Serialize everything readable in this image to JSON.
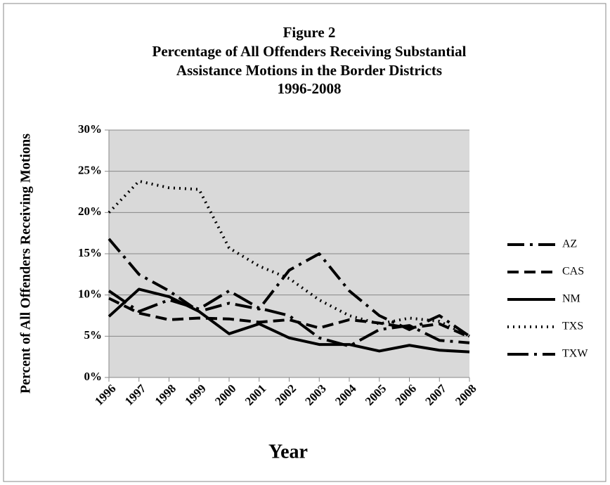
{
  "chart_data": {
    "type": "line",
    "title": [
      "Figure 2",
      "Percentage of All Offenders Receiving Substantial",
      "Assistance Motions in the Border Districts",
      "1996-2008"
    ],
    "x_label": "Year",
    "y_label": "Percent of All Offenders Receiving Motions",
    "categories": [
      "1996",
      "1997",
      "1998",
      "1999",
      "2000",
      "2001",
      "2002",
      "2003",
      "2004",
      "2005",
      "2006",
      "2007",
      "2008"
    ],
    "ylim": [
      0,
      30
    ],
    "yticks": [
      {
        "value": 0,
        "label": "0%"
      },
      {
        "value": 5,
        "label": "5%"
      },
      {
        "value": 10,
        "label": "10%"
      },
      {
        "value": 15,
        "label": "15%"
      },
      {
        "value": 20,
        "label": "20%"
      },
      {
        "value": 25,
        "label": "25%"
      },
      {
        "value": 30,
        "label": "30%"
      }
    ],
    "grid": true,
    "legend": "right",
    "plot_background": "#d9d9d9",
    "series": [
      {
        "name": "AZ",
        "color": "#000000",
        "dash": "24,8,4,8",
        "values": [
          16.8,
          12.5,
          10.5,
          8.0,
          9.0,
          8.3,
          13.0,
          15.0,
          10.5,
          7.5,
          5.8,
          7.5,
          5.0
        ]
      },
      {
        "name": "CAS",
        "color": "#000000",
        "dash": "16,8",
        "values": [
          9.6,
          7.8,
          7.0,
          7.2,
          7.1,
          6.7,
          7.0,
          6.0,
          7.0,
          6.6,
          6.0,
          6.5,
          4.9
        ]
      },
      {
        "name": "NM",
        "color": "#000000",
        "dash": "none",
        "values": [
          7.4,
          10.7,
          9.8,
          8.0,
          5.3,
          6.5,
          4.8,
          4.0,
          4.0,
          3.2,
          3.9,
          3.3,
          3.1
        ]
      },
      {
        "name": "TXS",
        "color": "#000000",
        "dash": "2,6",
        "values": [
          20.0,
          23.8,
          23.0,
          22.8,
          15.7,
          13.5,
          12.0,
          9.4,
          7.5,
          6.5,
          7.2,
          6.8,
          5.0
        ]
      },
      {
        "name": "TXW",
        "color": "#000000",
        "dash": "30,8,4,8",
        "values": [
          10.5,
          8.0,
          9.4,
          8.3,
          10.5,
          8.4,
          7.5,
          4.8,
          3.8,
          5.8,
          6.3,
          4.5,
          4.2
        ]
      }
    ]
  }
}
